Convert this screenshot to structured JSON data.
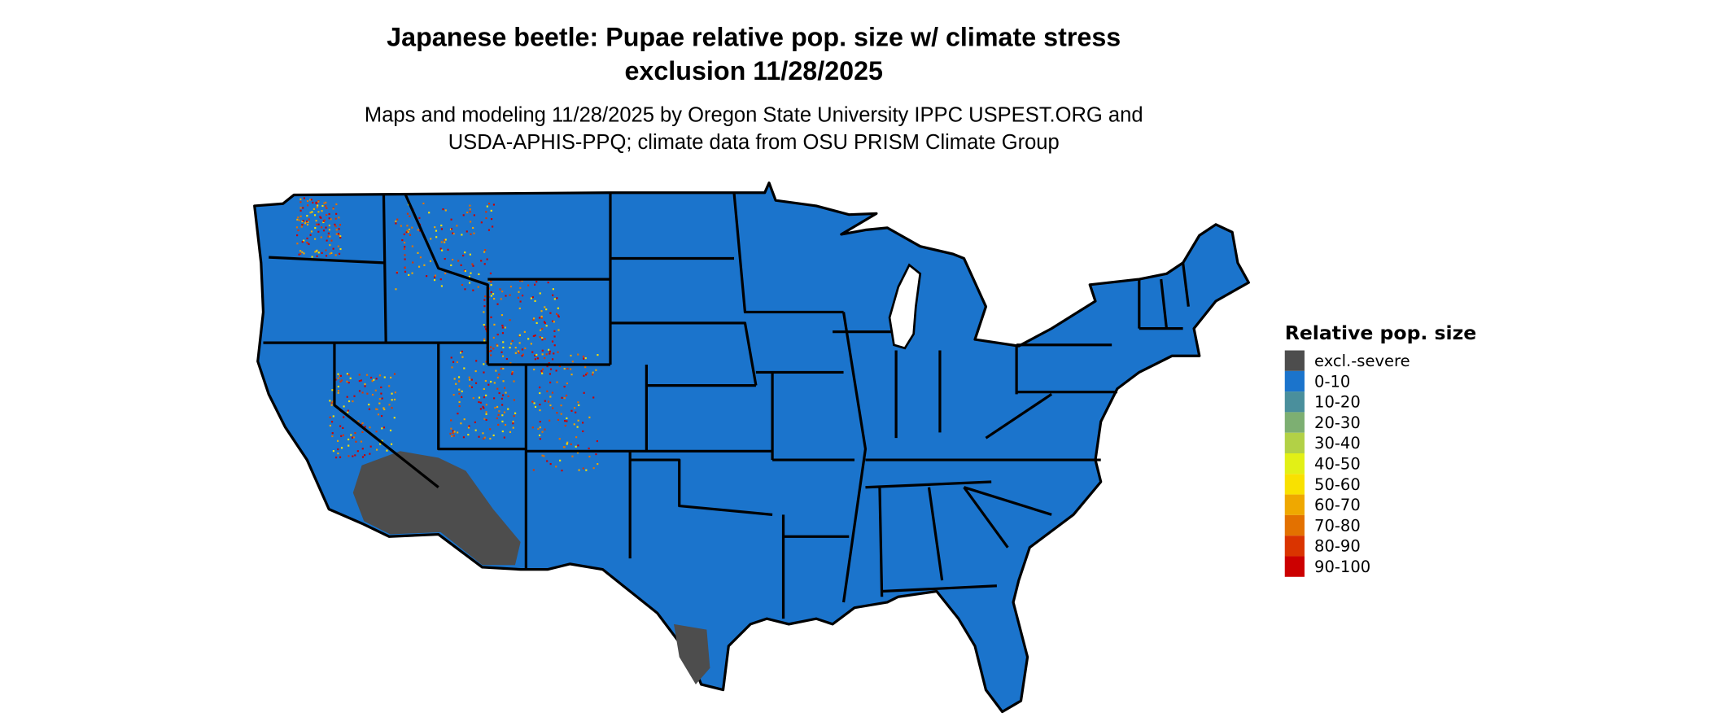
{
  "title": {
    "line1": "Japanese beetle: Pupae relative pop. size w/ climate stress",
    "line2": "exclusion 11/28/2025"
  },
  "subtitle": {
    "line1": "Maps and modeling 11/28/2025 by Oregon State University IPPC USPEST.ORG and",
    "line2": "USDA-APHIS-PPQ; climate data from OSU PRISM Climate Group"
  },
  "legend": {
    "title": "Relative pop. size",
    "items": [
      {
        "label": "excl.-severe",
        "color": "#4d4d4d"
      },
      {
        "label": "0-10",
        "color": "#1b74cc"
      },
      {
        "label": "10-20",
        "color": "#4a8f9c"
      },
      {
        "label": "20-30",
        "color": "#7daf72"
      },
      {
        "label": "30-40",
        "color": "#b2d146"
      },
      {
        "label": "40-50",
        "color": "#e2f016"
      },
      {
        "label": "50-60",
        "color": "#f9e100"
      },
      {
        "label": "60-70",
        "color": "#efa800"
      },
      {
        "label": "70-80",
        "color": "#e37100"
      },
      {
        "label": "80-90",
        "color": "#da3400"
      },
      {
        "label": "90-100",
        "color": "#cc0000"
      }
    ]
  },
  "map": {
    "region": "Contiguous United States",
    "dominant_class": "0-10",
    "excluded_areas": [
      "Southwest Arizona / Southeast California deserts",
      "South Texas"
    ],
    "high_value_areas": [
      "Northern Rockies",
      "Colorado Rockies",
      "Cascades"
    ]
  }
}
